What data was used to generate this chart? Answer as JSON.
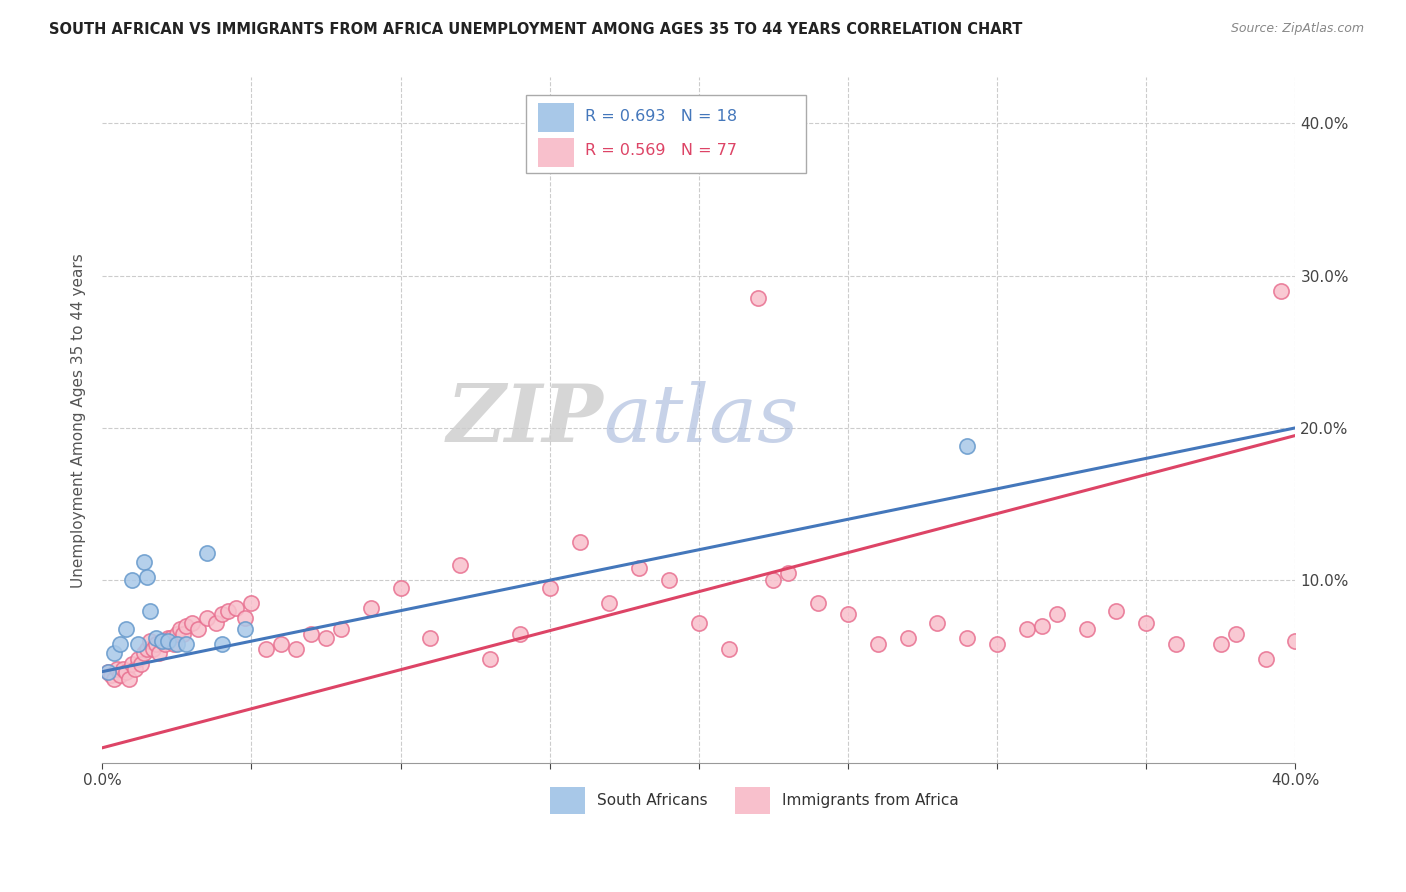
{
  "title": "SOUTH AFRICAN VS IMMIGRANTS FROM AFRICA UNEMPLOYMENT AMONG AGES 35 TO 44 YEARS CORRELATION CHART",
  "source": "Source: ZipAtlas.com",
  "ylabel": "Unemployment Among Ages 35 to 44 years",
  "xlim": [
    0.0,
    0.4
  ],
  "ylim": [
    -0.02,
    0.43
  ],
  "blue_color": "#a8c8e8",
  "blue_edge_color": "#6699cc",
  "pink_color": "#f8c0cc",
  "pink_edge_color": "#e87090",
  "blue_line_color": "#4477bb",
  "pink_line_color": "#dd4466",
  "legend_r_blue": "R = 0.693",
  "legend_n_blue": "N = 18",
  "legend_r_pink": "R = 0.569",
  "legend_n_pink": "N = 77",
  "legend_label_blue": "South Africans",
  "legend_label_pink": "Immigrants from Africa",
  "blue_line_x0": 0.0,
  "blue_line_y0": 0.04,
  "blue_line_x1": 0.4,
  "blue_line_y1": 0.2,
  "pink_line_x0": 0.0,
  "pink_line_y0": -0.01,
  "pink_line_x1": 0.4,
  "pink_line_y1": 0.195,
  "blue_scatter_x": [
    0.002,
    0.004,
    0.006,
    0.008,
    0.01,
    0.012,
    0.014,
    0.015,
    0.016,
    0.018,
    0.02,
    0.022,
    0.025,
    0.028,
    0.035,
    0.04,
    0.048,
    0.29
  ],
  "blue_scatter_y": [
    0.04,
    0.052,
    0.058,
    0.068,
    0.1,
    0.058,
    0.112,
    0.102,
    0.08,
    0.062,
    0.06,
    0.06,
    0.058,
    0.058,
    0.118,
    0.058,
    0.068,
    0.188
  ],
  "pink_scatter_x": [
    0.002,
    0.003,
    0.004,
    0.005,
    0.006,
    0.007,
    0.008,
    0.009,
    0.01,
    0.011,
    0.012,
    0.013,
    0.014,
    0.015,
    0.016,
    0.017,
    0.018,
    0.019,
    0.02,
    0.021,
    0.022,
    0.023,
    0.024,
    0.025,
    0.026,
    0.027,
    0.028,
    0.03,
    0.032,
    0.035,
    0.038,
    0.04,
    0.042,
    0.045,
    0.048,
    0.05,
    0.055,
    0.06,
    0.065,
    0.07,
    0.075,
    0.08,
    0.09,
    0.1,
    0.11,
    0.12,
    0.13,
    0.14,
    0.15,
    0.16,
    0.17,
    0.18,
    0.19,
    0.2,
    0.21,
    0.22,
    0.225,
    0.23,
    0.24,
    0.25,
    0.26,
    0.27,
    0.28,
    0.29,
    0.3,
    0.31,
    0.315,
    0.32,
    0.33,
    0.34,
    0.35,
    0.36,
    0.375,
    0.38,
    0.39,
    0.395,
    0.4
  ],
  "pink_scatter_y": [
    0.04,
    0.038,
    0.035,
    0.042,
    0.038,
    0.042,
    0.04,
    0.035,
    0.045,
    0.042,
    0.048,
    0.045,
    0.052,
    0.055,
    0.06,
    0.055,
    0.058,
    0.052,
    0.06,
    0.058,
    0.062,
    0.062,
    0.058,
    0.065,
    0.068,
    0.065,
    0.07,
    0.072,
    0.068,
    0.075,
    0.072,
    0.078,
    0.08,
    0.082,
    0.075,
    0.085,
    0.055,
    0.058,
    0.055,
    0.065,
    0.062,
    0.068,
    0.082,
    0.095,
    0.062,
    0.11,
    0.048,
    0.065,
    0.095,
    0.125,
    0.085,
    0.108,
    0.1,
    0.072,
    0.055,
    0.285,
    0.1,
    0.105,
    0.085,
    0.078,
    0.058,
    0.062,
    0.072,
    0.062,
    0.058,
    0.068,
    0.07,
    0.078,
    0.068,
    0.08,
    0.072,
    0.058,
    0.058,
    0.065,
    0.048,
    0.29,
    0.06
  ]
}
